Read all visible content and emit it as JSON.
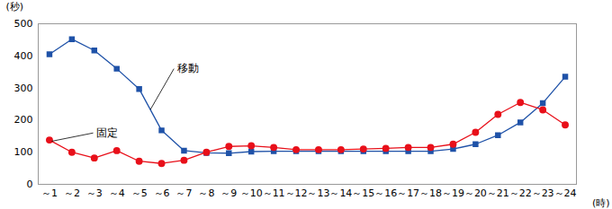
{
  "chart_data": {
    "type": "line",
    "x_label": "(時)",
    "y_label": "(秒)",
    "categories": [
      "～1",
      "～2",
      "～3",
      "～4",
      "～5",
      "～6",
      "～7",
      "～8",
      "～9",
      "～10",
      "～11",
      "～12",
      "～13",
      "～14",
      "～15",
      "～16",
      "～17",
      "～18",
      "～19",
      "～20",
      "～21",
      "～22",
      "～23",
      "～24"
    ],
    "series": [
      {
        "name": "移動",
        "color": "#1f52a8",
        "marker": "square",
        "values": [
          405,
          452,
          417,
          360,
          297,
          168,
          105,
          98,
          97,
          102,
          103,
          103,
          103,
          103,
          103,
          103,
          103,
          103,
          110,
          125,
          153,
          193,
          253,
          335
        ]
      },
      {
        "name": "固定",
        "color": "#e8101a",
        "marker": "circle",
        "values": [
          138,
          100,
          82,
          105,
          72,
          65,
          75,
          100,
          118,
          120,
          115,
          108,
          108,
          108,
          110,
          112,
          115,
          115,
          125,
          162,
          218,
          255,
          232,
          185
        ]
      }
    ],
    "ylim": [
      0,
      500
    ],
    "yticks": [
      0,
      100,
      200,
      300,
      400,
      500
    ],
    "grid": false
  }
}
